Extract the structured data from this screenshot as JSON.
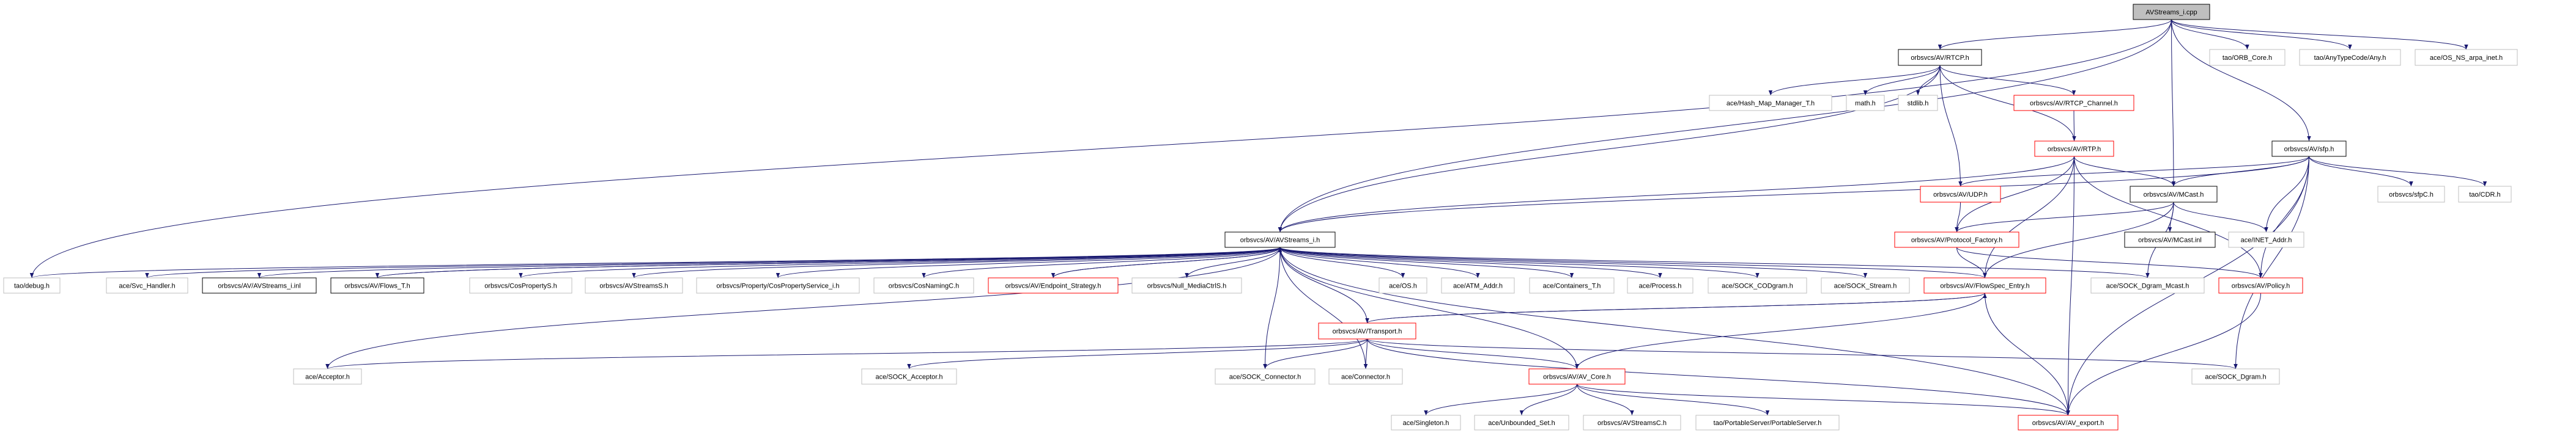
{
  "graph": {
    "edge_color": "#191970",
    "node_styles": {
      "root": {
        "fill": "#bfbfbf",
        "stroke": "#000000"
      },
      "documented": {
        "fill": "#ffffff",
        "stroke": "#000000"
      },
      "truncated": {
        "fill": "#ffffff",
        "stroke": "#ff0000"
      },
      "external": {
        "fill": "#ffffff",
        "stroke": "#bfbfbf"
      }
    },
    "nodes": [
      {
        "id": "cpp",
        "label": "AVStreams_i.cpp",
        "kind": "root"
      },
      {
        "id": "rtcp",
        "label": "orbsvcs/AV/RTCP.h",
        "kind": "documented"
      },
      {
        "id": "orbcore",
        "label": "tao/ORB_Core.h",
        "kind": "external"
      },
      {
        "id": "any",
        "label": "tao/AnyTypeCode/Any.h",
        "kind": "external"
      },
      {
        "id": "arpa",
        "label": "ace/OS_NS_arpa_inet.h",
        "kind": "external"
      },
      {
        "id": "hashmap",
        "label": "ace/Hash_Map_Manager_T.h",
        "kind": "external"
      },
      {
        "id": "math",
        "label": "math.h",
        "kind": "external"
      },
      {
        "id": "stdlib",
        "label": "stdlib.h",
        "kind": "external"
      },
      {
        "id": "rtcpch",
        "label": "orbsvcs/AV/RTCP_Channel.h",
        "kind": "truncated"
      },
      {
        "id": "rtp",
        "label": "orbsvcs/AV/RTP.h",
        "kind": "truncated"
      },
      {
        "id": "sfp",
        "label": "orbsvcs/AV/sfp.h",
        "kind": "documented"
      },
      {
        "id": "udp",
        "label": "orbsvcs/AV/UDP.h",
        "kind": "truncated"
      },
      {
        "id": "mcast",
        "label": "orbsvcs/AV/MCast.h",
        "kind": "documented"
      },
      {
        "id": "sfpc",
        "label": "orbsvcs/sfpC.h",
        "kind": "external"
      },
      {
        "id": "cdr",
        "label": "tao/CDR.h",
        "kind": "external"
      },
      {
        "id": "avsih",
        "label": "orbsvcs/AV/AVStreams_i.h",
        "kind": "documented"
      },
      {
        "id": "protof",
        "label": "orbsvcs/AV/Protocol_Factory.h",
        "kind": "truncated"
      },
      {
        "id": "mcastinl",
        "label": "orbsvcs/AV/MCast.inl",
        "kind": "documented"
      },
      {
        "id": "inet",
        "label": "ace/INET_Addr.h",
        "kind": "external"
      },
      {
        "id": "debug",
        "label": "tao/debug.h",
        "kind": "external"
      },
      {
        "id": "svch",
        "label": "ace/Svc_Handler.h",
        "kind": "external"
      },
      {
        "id": "avsinl",
        "label": "orbsvcs/AV/AVStreams_i.inl",
        "kind": "documented"
      },
      {
        "id": "flows",
        "label": "orbsvcs/AV/Flows_T.h",
        "kind": "documented"
      },
      {
        "id": "cosprops",
        "label": "orbsvcs/CosPropertyS.h",
        "kind": "external"
      },
      {
        "id": "avss",
        "label": "orbsvcs/AVStreamsS.h",
        "kind": "external"
      },
      {
        "id": "cpsi",
        "label": "orbsvcs/Property/CosPropertyService_i.h",
        "kind": "external"
      },
      {
        "id": "cosnaming",
        "label": "orbsvcs/CosNamingC.h",
        "kind": "external"
      },
      {
        "id": "endpoint",
        "label": "orbsvcs/AV/Endpoint_Strategy.h",
        "kind": "truncated"
      },
      {
        "id": "nullmc",
        "label": "orbsvcs/Null_MediaCtrlS.h",
        "kind": "external"
      },
      {
        "id": "os",
        "label": "ace/OS.h",
        "kind": "external"
      },
      {
        "id": "atm",
        "label": "ace/ATM_Addr.h",
        "kind": "external"
      },
      {
        "id": "containers",
        "label": "ace/Containers_T.h",
        "kind": "external"
      },
      {
        "id": "process",
        "label": "ace/Process.h",
        "kind": "external"
      },
      {
        "id": "codgram",
        "label": "ace/SOCK_CODgram.h",
        "kind": "external"
      },
      {
        "id": "sockstream",
        "label": "ace/SOCK_Stream.h",
        "kind": "external"
      },
      {
        "id": "flowspec",
        "label": "orbsvcs/AV/FlowSpec_Entry.h",
        "kind": "truncated"
      },
      {
        "id": "dgrammcast",
        "label": "ace/SOCK_Dgram_Mcast.h",
        "kind": "external"
      },
      {
        "id": "policy",
        "label": "orbsvcs/AV/Policy.h",
        "kind": "truncated"
      },
      {
        "id": "transport",
        "label": "orbsvcs/AV/Transport.h",
        "kind": "truncated"
      },
      {
        "id": "acceptor",
        "label": "ace/Acceptor.h",
        "kind": "external"
      },
      {
        "id": "sockacc",
        "label": "ace/SOCK_Acceptor.h",
        "kind": "external"
      },
      {
        "id": "sockconn",
        "label": "ace/SOCK_Connector.h",
        "kind": "external"
      },
      {
        "id": "connector",
        "label": "ace/Connector.h",
        "kind": "external"
      },
      {
        "id": "avcore",
        "label": "orbsvcs/AV/AV_Core.h",
        "kind": "truncated"
      },
      {
        "id": "dgram",
        "label": "ace/SOCK_Dgram.h",
        "kind": "external"
      },
      {
        "id": "singleton",
        "label": "ace/Singleton.h",
        "kind": "external"
      },
      {
        "id": "unbset",
        "label": "ace/Unbounded_Set.h",
        "kind": "external"
      },
      {
        "id": "avsc",
        "label": "orbsvcs/AVStreamsC.h",
        "kind": "external"
      },
      {
        "id": "portable",
        "label": "tao/PortableServer/PortableServer.h",
        "kind": "external"
      },
      {
        "id": "avexport",
        "label": "orbsvcs/AV/AV_export.h",
        "kind": "truncated"
      }
    ],
    "edges": [
      [
        "cpp",
        "rtcp"
      ],
      [
        "cpp",
        "orbcore"
      ],
      [
        "cpp",
        "any"
      ],
      [
        "cpp",
        "arpa"
      ],
      [
        "cpp",
        "sfp"
      ],
      [
        "cpp",
        "mcast"
      ],
      [
        "cpp",
        "avsih"
      ],
      [
        "cpp",
        "debug"
      ],
      [
        "rtcp",
        "hashmap"
      ],
      [
        "rtcp",
        "math"
      ],
      [
        "rtcp",
        "stdlib"
      ],
      [
        "rtcp",
        "rtcpch"
      ],
      [
        "rtcp",
        "rtp"
      ],
      [
        "rtcp",
        "udp"
      ],
      [
        "rtcp",
        "avsih"
      ],
      [
        "rtcpch",
        "rtp"
      ],
      [
        "rtp",
        "mcast"
      ],
      [
        "rtp",
        "protof"
      ],
      [
        "rtp",
        "flowspec"
      ],
      [
        "rtp",
        "policy"
      ],
      [
        "rtp",
        "avexport"
      ],
      [
        "rtp",
        "avsih"
      ],
      [
        "sfp",
        "udp"
      ],
      [
        "sfp",
        "mcast"
      ],
      [
        "sfp",
        "sfpc"
      ],
      [
        "sfp",
        "cdr"
      ],
      [
        "sfp",
        "inet"
      ],
      [
        "sfp",
        "policy"
      ],
      [
        "sfp",
        "dgram"
      ],
      [
        "sfp",
        "avexport"
      ],
      [
        "sfp",
        "avsih"
      ],
      [
        "udp",
        "protof"
      ],
      [
        "mcast",
        "mcastinl"
      ],
      [
        "mcast",
        "inet"
      ],
      [
        "mcast",
        "protof"
      ],
      [
        "mcast",
        "flowspec"
      ],
      [
        "mcast",
        "dgrammcast"
      ],
      [
        "protof",
        "flowspec"
      ],
      [
        "protof",
        "policy"
      ],
      [
        "policy",
        "avexport"
      ],
      [
        "flowspec",
        "avexport"
      ],
      [
        "flowspec",
        "avcore"
      ],
      [
        "avsih",
        "debug"
      ],
      [
        "avsih",
        "svch"
      ],
      [
        "avsih",
        "avsinl"
      ],
      [
        "avsih",
        "flows"
      ],
      [
        "avsih",
        "cosprops"
      ],
      [
        "avsih",
        "avss"
      ],
      [
        "avsih",
        "cpsi"
      ],
      [
        "avsih",
        "cosnaming"
      ],
      [
        "avsih",
        "endpoint"
      ],
      [
        "avsih",
        "nullmc"
      ],
      [
        "avsih",
        "os"
      ],
      [
        "avsih",
        "atm"
      ],
      [
        "avsih",
        "containers"
      ],
      [
        "avsih",
        "process"
      ],
      [
        "avsih",
        "codgram"
      ],
      [
        "avsih",
        "sockstream"
      ],
      [
        "avsih",
        "flowspec"
      ],
      [
        "avsih",
        "dgrammcast"
      ],
      [
        "avsih",
        "transport"
      ],
      [
        "avsih",
        "sockconn"
      ],
      [
        "avsih",
        "connector"
      ],
      [
        "avsih",
        "avcore"
      ],
      [
        "avsih",
        "acceptor"
      ],
      [
        "avsih",
        "avexport"
      ],
      [
        "flows",
        "avsih"
      ],
      [
        "endpoint",
        "avsih"
      ],
      [
        "transport",
        "acceptor"
      ],
      [
        "transport",
        "sockacc"
      ],
      [
        "transport",
        "sockconn"
      ],
      [
        "transport",
        "connector"
      ],
      [
        "transport",
        "avcore"
      ],
      [
        "transport",
        "dgram"
      ],
      [
        "transport",
        "avexport"
      ],
      [
        "transport",
        "flowspec"
      ],
      [
        "flowspec",
        "transport"
      ],
      [
        "avcore",
        "singleton"
      ],
      [
        "avcore",
        "unbset"
      ],
      [
        "avcore",
        "avsc"
      ],
      [
        "avcore",
        "portable"
      ],
      [
        "avcore",
        "avexport"
      ]
    ]
  }
}
